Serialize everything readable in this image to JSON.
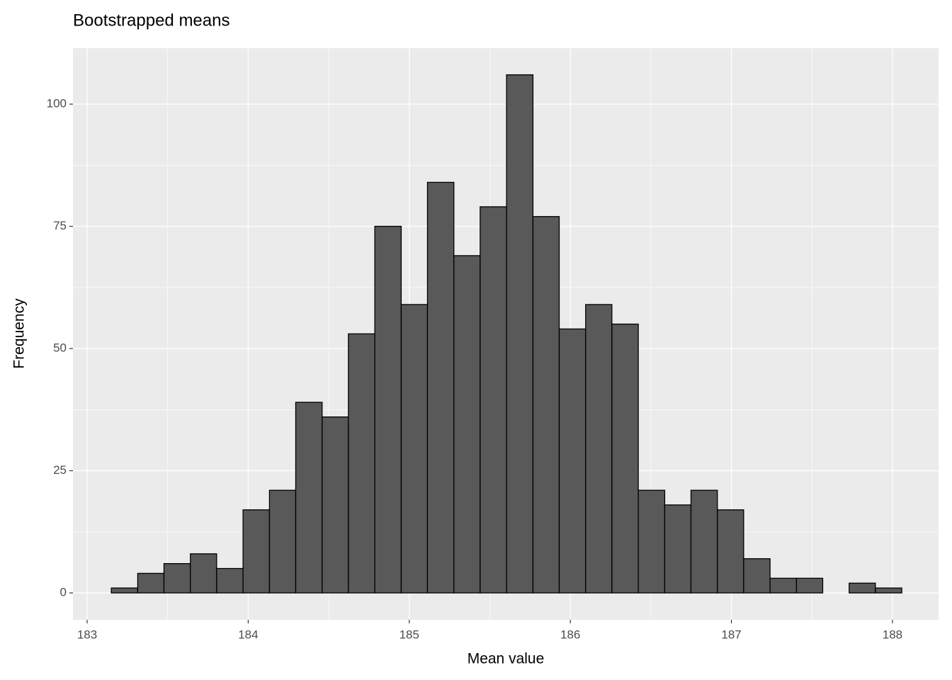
{
  "chart_data": {
    "type": "histogram",
    "title": "Bootstrapped means",
    "x_label": "Mean value",
    "y_label": "Frequency",
    "bins": [
      183.15,
      183.314,
      183.477,
      183.641,
      183.804,
      183.968,
      184.132,
      184.295,
      184.459,
      184.622,
      184.786,
      184.95,
      185.113,
      185.277,
      185.44,
      185.604,
      185.768,
      185.931,
      186.095,
      186.258,
      186.422,
      186.586,
      186.749,
      186.913,
      187.076,
      187.24,
      187.404,
      187.567,
      187.731,
      187.894,
      188.058
    ],
    "values": [
      1,
      4,
      6,
      8,
      5,
      17,
      21,
      39,
      36,
      53,
      75,
      59,
      84,
      69,
      79,
      106,
      77,
      54,
      59,
      55,
      21,
      18,
      21,
      17,
      7,
      3,
      3,
      0,
      2,
      1
    ],
    "color": "#595959",
    "edge_color": "#000000",
    "xlim": [
      182.912,
      188.286
    ],
    "ylim": [
      -5.5,
      111.45
    ],
    "xticks": [
      183,
      184,
      185,
      186,
      187,
      188
    ],
    "yticks": [
      0,
      25,
      50,
      75,
      100
    ],
    "grid": true
  }
}
